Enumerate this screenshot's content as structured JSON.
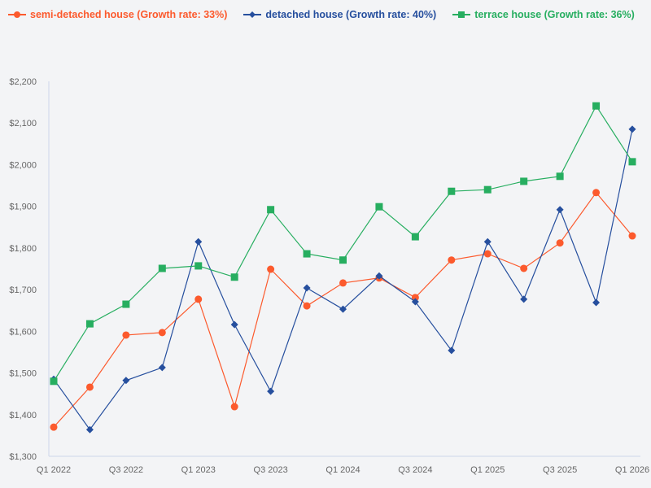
{
  "legend": [
    {
      "label": "semi-detached house (Growth rate: 33%)",
      "color": "#fc5a2d",
      "marker": "circle"
    },
    {
      "label": "detached house (Growth rate: 40%)",
      "color": "#264f9e",
      "marker": "diamond"
    },
    {
      "label": "terrace house (Growth rate: 36%)",
      "color": "#27ae60",
      "marker": "square"
    }
  ],
  "chart_data": {
    "type": "line",
    "title": "",
    "xlabel": "",
    "ylabel": "",
    "ylim": [
      1300,
      2200
    ],
    "y_ticks": [
      "$1,300",
      "$1,400",
      "$1,500",
      "$1,600",
      "$1,700",
      "$1,800",
      "$1,900",
      "$2,000",
      "$2,100",
      "$2,200"
    ],
    "x_tick_labels": [
      "Q1 2022",
      "Q3 2022",
      "Q1 2023",
      "Q3 2023",
      "Q1 2024",
      "Q3 2024",
      "Q1 2025",
      "Q3 2025",
      "Q1 2026"
    ],
    "categories": [
      "Q1 2022",
      "Q2 2022",
      "Q3 2022",
      "Q4 2022",
      "Q1 2023",
      "Q2 2023",
      "Q3 2023",
      "Q4 2023",
      "Q1 2024",
      "Q2 2024",
      "Q3 2024",
      "Q4 2024",
      "Q1 2025",
      "Q2 2025",
      "Q3 2025",
      "Q4 2025",
      "Q1 2026"
    ],
    "grid": false,
    "legend_position": "top",
    "series": [
      {
        "name": "semi-detached house (Growth rate: 33%)",
        "color": "#fc5a2d",
        "marker": "circle",
        "values": [
          1370,
          1466,
          1591,
          1597,
          1677,
          1419,
          1749,
          1661,
          1716,
          1728,
          1681,
          1771,
          1786,
          1751,
          1812,
          1933,
          1829
        ]
      },
      {
        "name": "detached house (Growth rate: 40%)",
        "color": "#264f9e",
        "marker": "diamond",
        "values": [
          1485,
          1364,
          1482,
          1513,
          1815,
          1616,
          1456,
          1704,
          1653,
          1733,
          1671,
          1554,
          1815,
          1677,
          1892,
          1669,
          2085
        ]
      },
      {
        "name": "terrace house (Growth rate: 36%)",
        "color": "#27ae60",
        "marker": "square",
        "values": [
          1480,
          1618,
          1665,
          1751,
          1757,
          1730,
          1892,
          1786,
          1771,
          1899,
          1827,
          1936,
          1940,
          1960,
          1972,
          2141,
          2007
        ]
      }
    ]
  }
}
